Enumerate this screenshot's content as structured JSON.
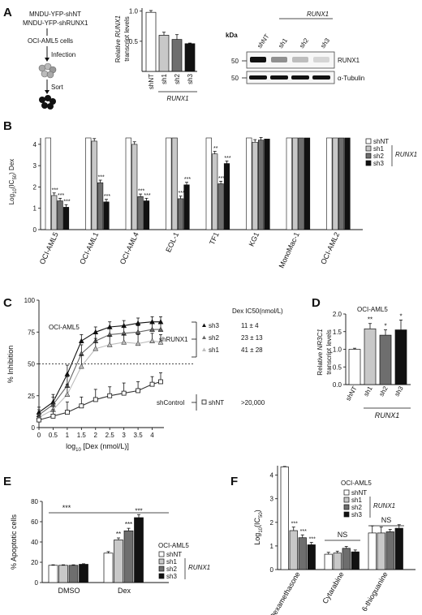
{
  "panels": {
    "A": {
      "letter": "A",
      "schematic": {
        "vector1": "MNDU-YFP-shNT",
        "vector2": "MNDU-YFP-shRUNX1",
        "cells": "OCI-AML5 cells",
        "step1": "Infection",
        "step2": "Sort"
      },
      "blot": {
        "kda_label": "kDa",
        "lanes": [
          "shNT",
          "sh1",
          "sh2",
          "sh3"
        ],
        "group_label": "RUNX1",
        "bands": [
          {
            "marker": "50",
            "label": "RUNX1",
            "intensity": [
              1.0,
              0.45,
              0.25,
              0.15
            ]
          },
          {
            "marker": "50",
            "label": "α-Tubulin",
            "intensity": [
              1.0,
              1.0,
              1.0,
              1.0
            ]
          }
        ]
      }
    },
    "B": {
      "letter": "B"
    },
    "C": {
      "letter": "C",
      "cell_line": "OCI-AML5",
      "ic50_header": "Dex IC50(nmol/L)",
      "groups": {
        "runx": "shRUNX1",
        "control": "shControl"
      },
      "ic50_rows": [
        {
          "name": "sh3",
          "value": "11 ± 4"
        },
        {
          "name": "sh2",
          "value": "23 ± 13"
        },
        {
          "name": "sh1",
          "value": "41 ± 28"
        },
        {
          "name": "shNT",
          "value": ">20,000"
        }
      ]
    },
    "D": {
      "letter": "D",
      "cell_line": "OCI-AML5"
    },
    "E": {
      "letter": "E",
      "cell_line": "OCI-AML5"
    },
    "F": {
      "letter": "F",
      "cell_line": "OCI-AML5"
    }
  },
  "colors": {
    "shNT": "#ffffff",
    "sh1": "#c8c8c8",
    "sh2": "#6e6e6e",
    "sh3": "#111111",
    "axis": "#111111"
  },
  "chart_data": [
    {
      "id": "A",
      "type": "bar",
      "categories": [
        "shNT",
        "sh1",
        "sh2",
        "sh3"
      ],
      "values": [
        0.98,
        0.6,
        0.53,
        0.46
      ],
      "errors": [
        0.03,
        0.05,
        0.08,
        0.01
      ],
      "ylabel": "Relative RUNX1 transcript levels",
      "ylim": [
        0,
        1.05
      ],
      "yticks": [
        0.5,
        1.0
      ],
      "ytick_labels": [
        "0.5",
        "1.0"
      ],
      "group_label": "RUNX1"
    },
    {
      "id": "B",
      "type": "bar",
      "categories": [
        "OCI-AML5",
        "OCI-AML1",
        "OCI-AML4",
        "EOL-1",
        "TF1",
        "KG1",
        "MonoMac-1",
        "OCI-AML2"
      ],
      "series": [
        {
          "name": "shNT",
          "values": [
            4.3,
            4.3,
            4.3,
            4.3,
            4.3,
            4.3,
            4.3,
            4.3
          ]
        },
        {
          "name": "sh1",
          "values": [
            1.6,
            4.15,
            4.0,
            4.3,
            3.55,
            4.1,
            4.3,
            4.3
          ]
        },
        {
          "name": "sh2",
          "values": [
            1.35,
            2.2,
            1.55,
            1.45,
            2.15,
            4.2,
            4.3,
            4.3
          ]
        },
        {
          "name": "sh3",
          "values": [
            1.05,
            1.3,
            1.35,
            2.1,
            3.1,
            4.25,
            4.3,
            4.3
          ]
        }
      ],
      "significance": {
        "sh1": [
          "***",
          "",
          "",
          "",
          "**",
          "",
          "",
          ""
        ],
        "sh2": [
          "***",
          "***",
          "***",
          "***",
          "***",
          "",
          "",
          ""
        ],
        "sh3": [
          "***",
          "***",
          "***",
          "***",
          "***",
          "",
          "",
          ""
        ]
      },
      "ylabel": "Log10(IC50) Dex",
      "ylim": [
        0,
        4.3
      ],
      "yticks": [
        0,
        1,
        2,
        3,
        4
      ],
      "ytick_labels": [
        "0",
        "1",
        "2",
        "3",
        "4"
      ],
      "legend": [
        "shNT",
        "sh1",
        "sh2",
        "sh3"
      ],
      "legend_group": "RUNX1",
      "legend_position": "top-right"
    },
    {
      "id": "C",
      "type": "line",
      "xlabel": "log10 [Dex (nmol/L)]",
      "ylabel": "% Inhibition",
      "xlim": [
        0,
        4.3
      ],
      "ylim": [
        0,
        100
      ],
      "xticks": [
        0,
        0.5,
        1,
        1.5,
        2,
        2.5,
        3,
        3.5,
        4
      ],
      "xtick_labels": [
        "0",
        "0.5",
        "1",
        "1.5",
        "2",
        "2.5",
        "3",
        "3.5",
        "4"
      ],
      "yticks": [
        0,
        25,
        50,
        75,
        100
      ],
      "ytick_labels": [
        "0",
        "25",
        "50",
        "75",
        "100"
      ],
      "x": [
        0,
        0.5,
        1,
        1.5,
        2,
        2.5,
        3,
        3.5,
        4,
        4.3
      ],
      "reference_line": 50,
      "series": [
        {
          "name": "sh3",
          "marker": "triangle-up",
          "fill": "#111111",
          "values": [
            12,
            20,
            42,
            68,
            75,
            79,
            80,
            82,
            83,
            83
          ],
          "errors": [
            4,
            6,
            7,
            5,
            4,
            4,
            4,
            4,
            4,
            4
          ]
        },
        {
          "name": "sh2",
          "marker": "triangle-up",
          "fill": "#666666",
          "values": [
            10,
            18,
            33,
            58,
            68,
            73,
            74,
            75,
            77,
            77
          ],
          "errors": [
            4,
            6,
            7,
            7,
            6,
            5,
            5,
            5,
            5,
            5
          ]
        },
        {
          "name": "sh1",
          "marker": "triangle-up",
          "fill": "#bdbdbd",
          "values": [
            8,
            14,
            26,
            48,
            62,
            65,
            67,
            66,
            68,
            67
          ],
          "errors": [
            4,
            6,
            8,
            9,
            8,
            7,
            6,
            7,
            6,
            6
          ]
        },
        {
          "name": "shNT",
          "marker": "square-open",
          "fill": "#ffffff",
          "values": [
            6,
            9,
            12,
            17,
            22,
            25,
            27,
            29,
            34,
            36
          ],
          "errors": [
            3,
            5,
            8,
            7,
            8,
            7,
            8,
            7,
            6,
            7
          ]
        }
      ]
    },
    {
      "id": "D",
      "type": "bar",
      "categories": [
        "shNT",
        "sh1",
        "sh2",
        "sh3"
      ],
      "values": [
        1.0,
        1.58,
        1.4,
        1.55
      ],
      "errors": [
        0.03,
        0.15,
        0.15,
        0.28
      ],
      "significance": [
        "",
        "**",
        "*",
        "*"
      ],
      "ylabel": "Relative NR3C1 transcript levels",
      "ylim": [
        0,
        2.0
      ],
      "yticks": [
        0.0,
        0.5,
        1.0,
        1.5,
        2.0
      ],
      "ytick_labels": [
        "0.0",
        "0.5",
        "1.0",
        "1.5",
        "2.0"
      ],
      "group_label": "RUNX1"
    },
    {
      "id": "E",
      "type": "bar",
      "categories": [
        "DMSO",
        "Dex"
      ],
      "series": [
        {
          "name": "shNT",
          "values": [
            17,
            29
          ]
        },
        {
          "name": "sh1",
          "values": [
            17,
            42
          ]
        },
        {
          "name": "sh2",
          "values": [
            17,
            51
          ]
        },
        {
          "name": "sh3",
          "values": [
            18,
            64
          ]
        }
      ],
      "errors": [
        [
          0.5,
          1.5
        ],
        [
          0.5,
          2
        ],
        [
          0.5,
          2.5
        ],
        [
          0.5,
          3
        ]
      ],
      "significance": {
        "Dex": [
          "",
          "**",
          "***",
          "***"
        ],
        "overall": "***"
      },
      "ylabel": "% Apoptotic cells",
      "ylim": [
        0,
        80
      ],
      "yticks": [
        0,
        20,
        40,
        60,
        80
      ],
      "ytick_labels": [
        "0",
        "20",
        "40",
        "60",
        "80"
      ],
      "legend": [
        "shNT",
        "sh1",
        "sh2",
        "sh3"
      ],
      "legend_group": "RUNX1"
    },
    {
      "id": "F",
      "type": "bar",
      "categories": [
        "Dexamethasone",
        "Cytarabine",
        "6-thioguanine"
      ],
      "series": [
        {
          "name": "shNT",
          "values": [
            4.35,
            0.65,
            1.55
          ]
        },
        {
          "name": "sh1",
          "values": [
            1.65,
            0.7,
            1.55
          ]
        },
        {
          "name": "sh2",
          "values": [
            1.35,
            0.9,
            1.6
          ]
        },
        {
          "name": "sh3",
          "values": [
            1.05,
            0.75,
            1.75
          ]
        }
      ],
      "errors": [
        [
          0.02,
          0.08,
          0.3
        ],
        [
          0.15,
          0.08,
          0.25
        ],
        [
          0.12,
          0.08,
          0.1
        ],
        [
          0.1,
          0.08,
          0.15
        ]
      ],
      "significance": {
        "Dexamethasone": [
          "",
          "***",
          "***",
          "***"
        ],
        "Cytarabine": "NS",
        "6-thioguanine": "NS"
      },
      "ylabel": "Log10(IC50)",
      "ylim": [
        0,
        4.4
      ],
      "yticks": [
        0,
        1,
        2,
        3,
        4
      ],
      "ytick_labels": [
        "0",
        "1",
        "2",
        "3",
        "4"
      ],
      "legend": [
        "shNT",
        "sh1",
        "sh2",
        "sh3"
      ],
      "legend_group": "RUNX1"
    }
  ]
}
